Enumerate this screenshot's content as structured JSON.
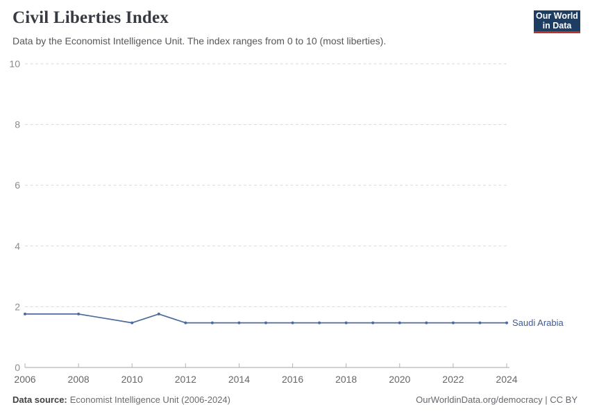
{
  "header": {
    "title": "Civil Liberties Index",
    "subtitle": "Data by the Economist Intelligence Unit. The index ranges from 0 to 10 (most liberties).",
    "logo": {
      "line1": "Our World",
      "line2": "in Data",
      "bg_color": "#1d3d63",
      "accent_color": "#bc3228",
      "text_color": "#ffffff"
    }
  },
  "chart_data": {
    "type": "line",
    "title": "Civil Liberties Index",
    "subtitle": "Data by the Economist Intelligence Unit. The index ranges from 0 to 10 (most liberties).",
    "xlabel": "",
    "ylabel": "",
    "xlim": [
      2006,
      2024
    ],
    "ylim": [
      0,
      10
    ],
    "yticks": [
      0,
      2,
      4,
      6,
      8,
      10
    ],
    "xticks": [
      2006,
      2008,
      2010,
      2012,
      2014,
      2016,
      2018,
      2020,
      2022,
      2024
    ],
    "grid": "horizontal-dashed",
    "legend_position": "end-of-line",
    "axis_color": "#a6a6a6",
    "grid_color": "#dadada",
    "series": [
      {
        "name": "Saudi Arabia",
        "color": "#4C6A9C",
        "label_color": "#3d5a96",
        "points": [
          [
            2006,
            1.76
          ],
          [
            2008,
            1.76
          ],
          [
            2010,
            1.47
          ],
          [
            2011,
            1.76
          ],
          [
            2012,
            1.47
          ],
          [
            2013,
            1.47
          ],
          [
            2014,
            1.47
          ],
          [
            2015,
            1.47
          ],
          [
            2016,
            1.47
          ],
          [
            2017,
            1.47
          ],
          [
            2018,
            1.47
          ],
          [
            2019,
            1.47
          ],
          [
            2020,
            1.47
          ],
          [
            2021,
            1.47
          ],
          [
            2022,
            1.47
          ],
          [
            2023,
            1.47
          ],
          [
            2024,
            1.47
          ]
        ]
      }
    ]
  },
  "footer": {
    "datasource_label": "Data source:",
    "datasource_text": "Economist Intelligence Unit (2006-2024)",
    "credit": "OurWorldinData.org/democracy | CC BY"
  }
}
